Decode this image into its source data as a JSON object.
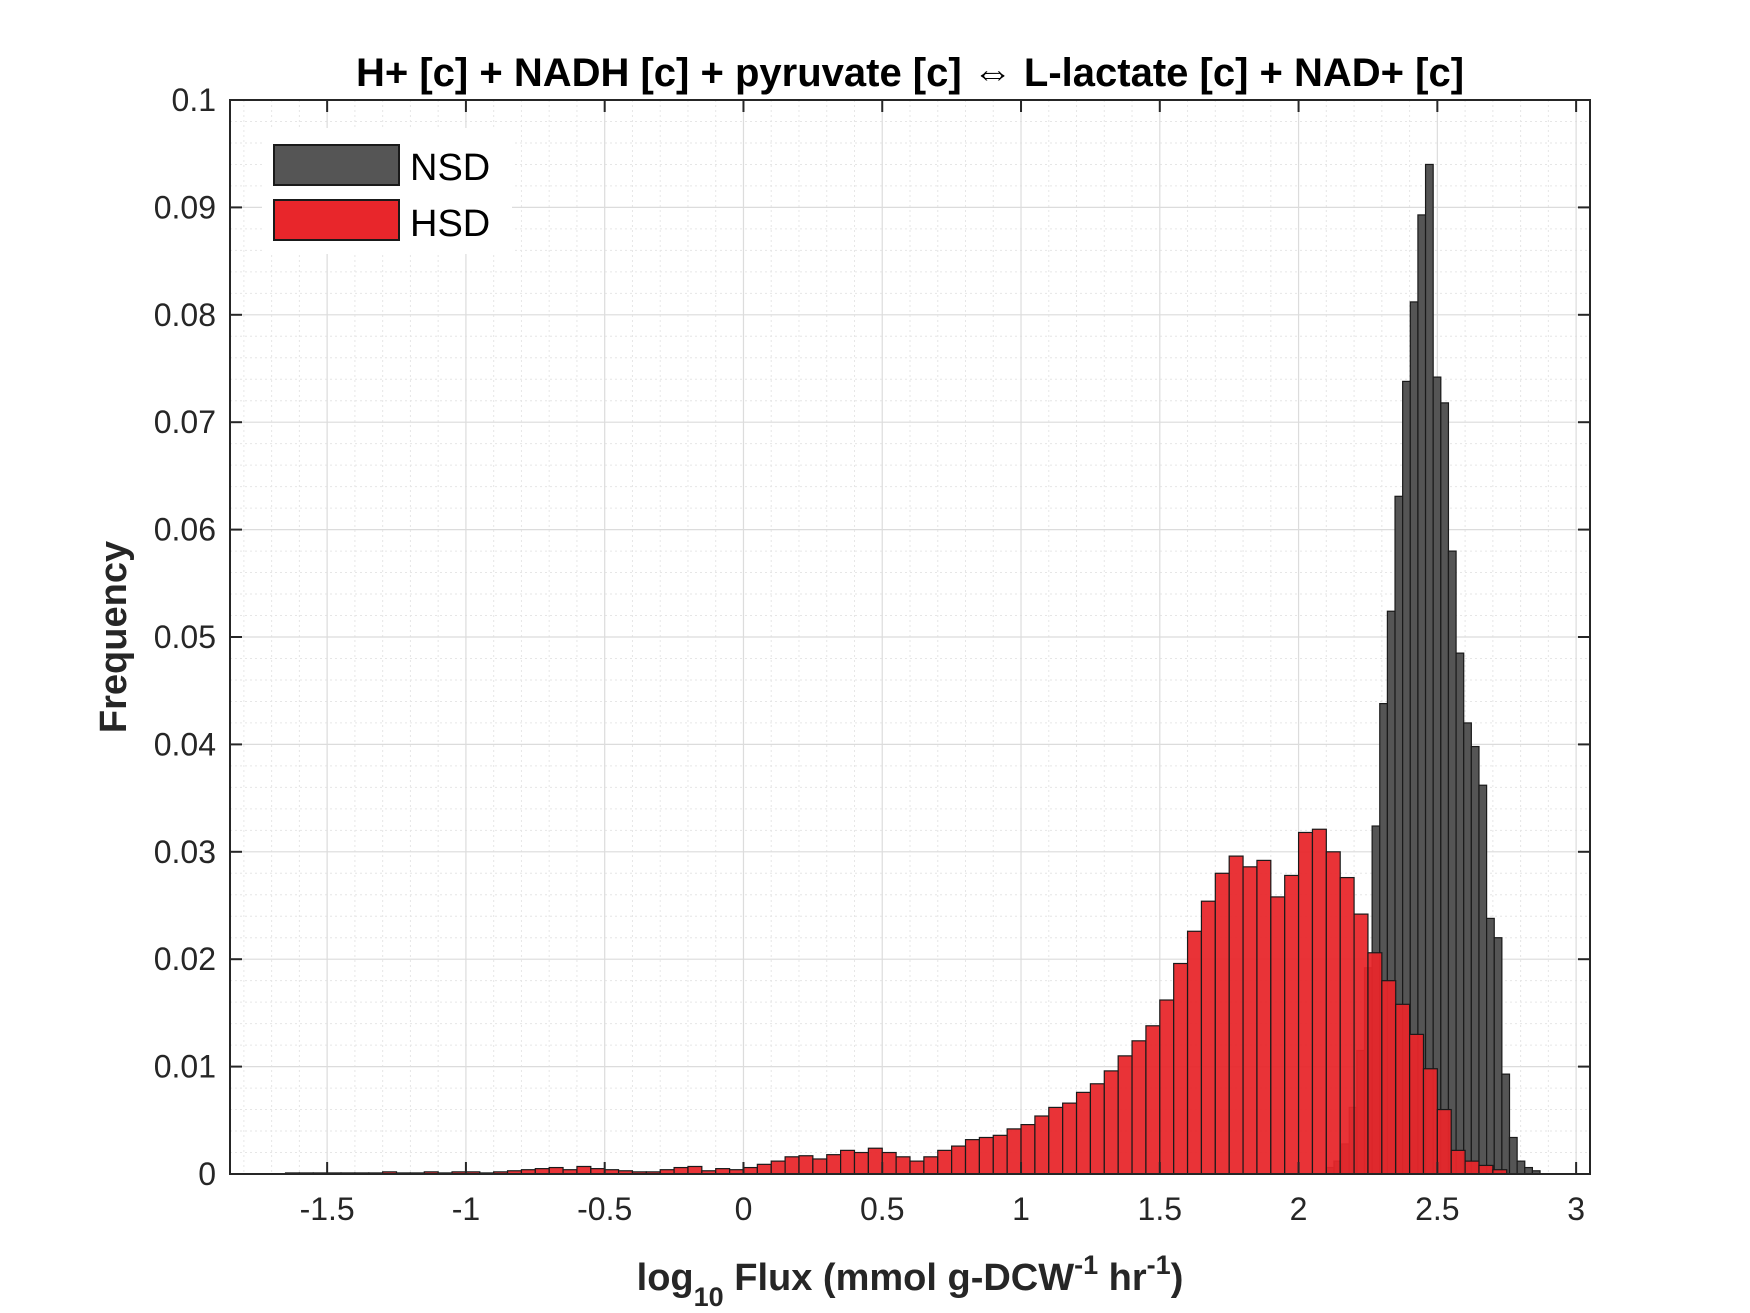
{
  "chart_data": {
    "type": "bar",
    "title": "H+ [c] + NADH [c] + pyruvate [c] ⇔ L-lactate [c] + NAD+ [c]",
    "xlabel": {
      "prefix": "log",
      "sub1": "10",
      "mid1": " Flux (mmol g-DCW",
      "sup1": "-1",
      "mid2": " hr",
      "sup2": "-1",
      "suffix": ")"
    },
    "ylabel": "Frequency",
    "xlim": [
      -1.85,
      3.05
    ],
    "ylim": [
      0,
      0.1
    ],
    "xticks": [
      "-1.5",
      "-1",
      "-0.5",
      "0",
      "0.5",
      "1",
      "1.5",
      "2",
      "2.5",
      "3"
    ],
    "xtick_values": [
      -1.5,
      -1,
      -0.5,
      0,
      0.5,
      1,
      1.5,
      2,
      2.5,
      3
    ],
    "yticks": [
      "0",
      "0.01",
      "0.02",
      "0.03",
      "0.04",
      "0.05",
      "0.06",
      "0.07",
      "0.08",
      "0.09",
      "0.1"
    ],
    "ytick_values": [
      0,
      0.01,
      0.02,
      0.03,
      0.04,
      0.05,
      0.06,
      0.07,
      0.08,
      0.09,
      0.1
    ],
    "grid": true,
    "minor_grid": true,
    "legend_position": "top-left",
    "colors": {
      "NSD": "#555555",
      "HSD": "#e8262b",
      "edge": "#1a1a1a"
    },
    "series": [
      {
        "name": "NSD",
        "bin_start": 2.1,
        "bin_width": 0.0275,
        "values": [
          0.0006,
          0.0012,
          0.0028,
          0.0062,
          0.0115,
          0.0192,
          0.0324,
          0.0438,
          0.0524,
          0.0631,
          0.0738,
          0.0812,
          0.0893,
          0.094,
          0.0742,
          0.0718,
          0.058,
          0.0485,
          0.042,
          0.0398,
          0.0362,
          0.0238,
          0.022,
          0.0093,
          0.0034,
          0.0012,
          0.0006,
          0.0003
        ]
      },
      {
        "name": "HSD",
        "bin_start": -1.65,
        "bin_width": 0.05,
        "values": [
          0.0001,
          0.0001,
          0.0001,
          0.0001,
          0.0001,
          0.0001,
          0.0001,
          0.0002,
          0.0001,
          0.0001,
          0.0002,
          0.0001,
          0.0002,
          0.0002,
          0.0001,
          0.0002,
          0.0003,
          0.0004,
          0.0005,
          0.0006,
          0.0004,
          0.0007,
          0.0005,
          0.0004,
          0.0003,
          0.0002,
          0.0002,
          0.0004,
          0.0006,
          0.0007,
          0.0003,
          0.0005,
          0.0004,
          0.0006,
          0.0009,
          0.0012,
          0.0016,
          0.0017,
          0.0014,
          0.0018,
          0.0022,
          0.002,
          0.0024,
          0.002,
          0.0016,
          0.0012,
          0.0016,
          0.0022,
          0.0026,
          0.0032,
          0.0034,
          0.0036,
          0.0042,
          0.0046,
          0.0054,
          0.0062,
          0.0066,
          0.0076,
          0.0084,
          0.0096,
          0.011,
          0.0124,
          0.0138,
          0.0162,
          0.0196,
          0.0226,
          0.0254,
          0.028,
          0.0296,
          0.0286,
          0.0292,
          0.0258,
          0.0278,
          0.0318,
          0.0321,
          0.03,
          0.0276,
          0.0242,
          0.0206,
          0.018,
          0.0158,
          0.013,
          0.0098,
          0.006,
          0.0022,
          0.0012,
          0.0008,
          0.0004
        ]
      }
    ]
  }
}
